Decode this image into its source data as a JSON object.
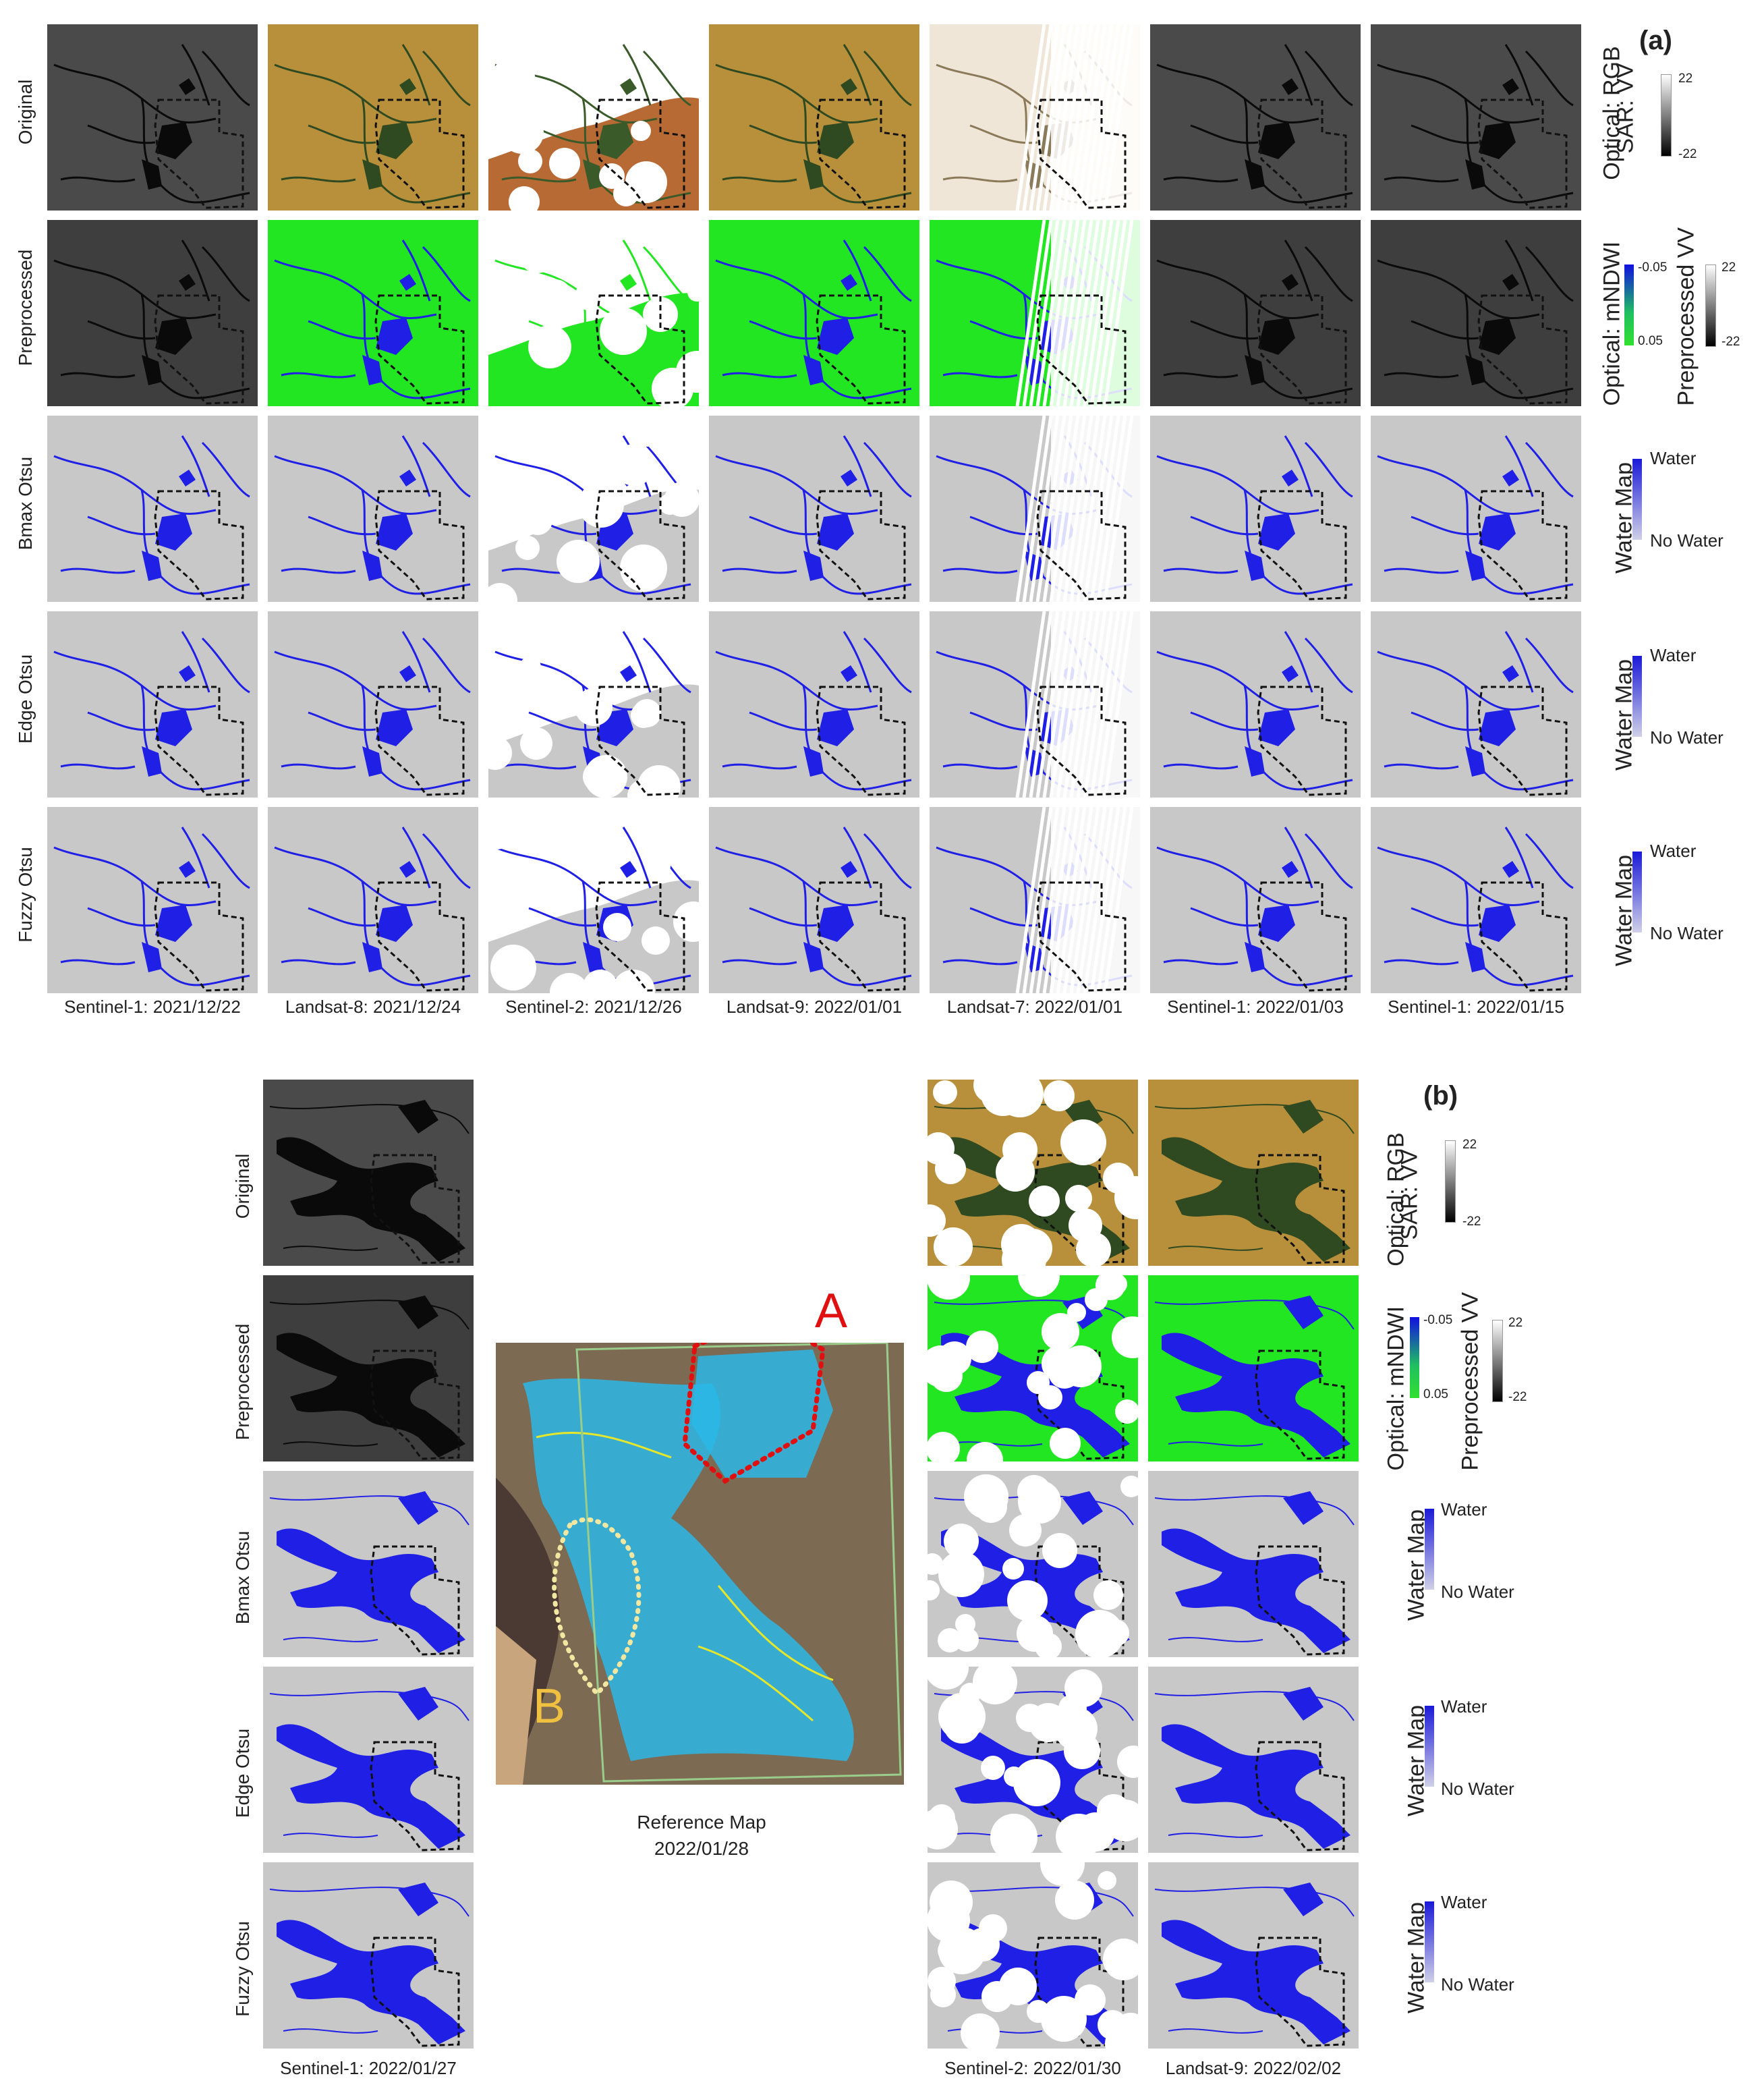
{
  "panel_a": {
    "label": "(a)",
    "row_labels": [
      "Original",
      "Preprocessed",
      "Bmax Otsu",
      "Edge Otsu",
      "Fuzzy Otsu"
    ],
    "columns": [
      {
        "caption": "Sentinel-1: 2021/12/22",
        "kind": "sar"
      },
      {
        "caption": "Landsat-8: 2021/12/24",
        "kind": "optical"
      },
      {
        "caption": "Sentinel-2: 2021/12/26",
        "kind": "cloudy"
      },
      {
        "caption": "Landsat-9: 2022/01/01",
        "kind": "optical"
      },
      {
        "caption": "Landsat-7: 2022/01/01",
        "kind": "stripe"
      },
      {
        "caption": "Sentinel-1: 2022/01/03",
        "kind": "sar"
      },
      {
        "caption": "Sentinel-1: 2022/01/15",
        "kind": "sar"
      }
    ],
    "legends": {
      "original": {
        "line1": "Optical: RGB",
        "line2": "SAR: VV",
        "max": "22",
        "min": "-22"
      },
      "preprocessed": {
        "line1": "Optical: mNDWI",
        "ndwi_top": "-0.05",
        "ndwi_bottom": "0.05",
        "line2": "Preprocessed VV",
        "max": "22",
        "min": "-22"
      },
      "water": {
        "title": "Water Map",
        "top": "Water",
        "bottom": "No Water"
      }
    }
  },
  "panel_b": {
    "label": "(b)",
    "row_labels": [
      "Original",
      "Preprocessed",
      "Bmax Otsu",
      "Edge Otsu",
      "Fuzzy Otsu"
    ],
    "left_caption": "Sentinel-1: 2022/01/27",
    "right_captions": [
      "Sentinel-2: 2022/01/30",
      "Landsat-9: 2022/02/02"
    ],
    "reference": {
      "caption_line1": "Reference Map",
      "caption_line2": "2022/01/28",
      "marker_a": "A",
      "marker_b": "B"
    },
    "legends": {
      "original": {
        "line1": "Optical: RGB",
        "line2": "SAR: VV",
        "max": "22",
        "min": "-22"
      },
      "preprocessed": {
        "line1": "Optical: mNDWI",
        "ndwi_top": "-0.05",
        "ndwi_bottom": "0.05",
        "line2": "Preprocessed VV",
        "max": "22",
        "min": "-22"
      },
      "water": {
        "title": "Water Map",
        "top": "Water",
        "bottom": "No Water"
      }
    }
  },
  "colors": {
    "water": "#1f1fe6",
    "no_water": "#c8c8c8",
    "mndwi_land": "#22e622",
    "sar": "#4a4a4a",
    "optical_land": "#b8903c"
  }
}
